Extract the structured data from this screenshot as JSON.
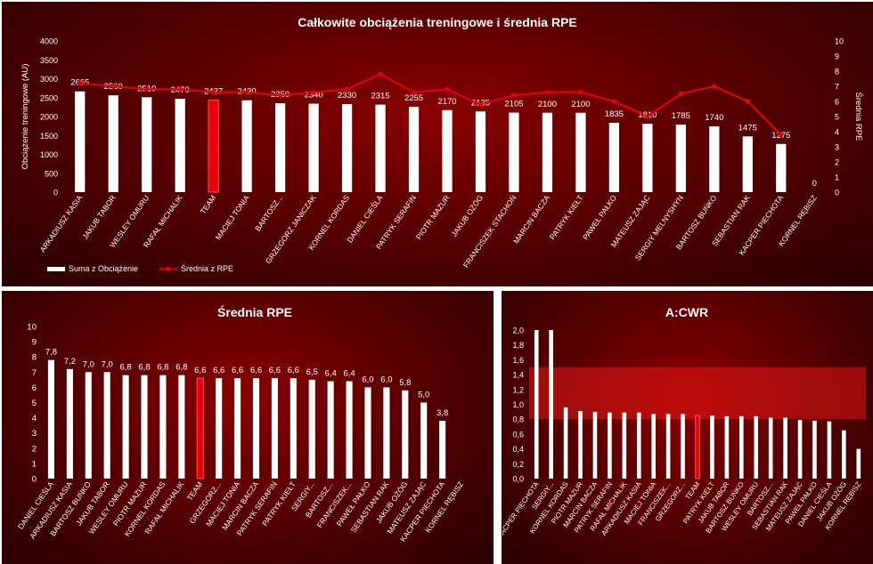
{
  "chart_data": [
    {
      "type": "bar",
      "title": "Całkowite obciążenia treningowe i średnia RPE",
      "ylabel": "Obciążenie treningowe (AU)",
      "y2label": "Średnia RPE",
      "ylim": [
        0,
        4000
      ],
      "yticks": [
        "0",
        "500",
        "1000",
        "1500",
        "2000",
        "2500",
        "3000",
        "3500",
        "4000"
      ],
      "y2lim": [
        0,
        10
      ],
      "y2ticks": [
        "0",
        "1",
        "2",
        "3",
        "4",
        "5",
        "6",
        "7",
        "8",
        "9",
        "10"
      ],
      "categories": [
        "ARKADIUSZ KASIA",
        "JAKUB TABOR",
        "WESLEY OMURU",
        "RAFAŁ MICHALIK",
        "TEAM",
        "MACIEJ TONIA",
        "BARTOSZ...",
        "GRZEGORZ JANICZAK",
        "KORNEL KORDAS",
        "DANIEL CIEŚLA",
        "PATRYK SERAFIN",
        "PIOTR MAZUR",
        "JAKUB OŻÓG",
        "FRANCISZEK STACHOŃ",
        "MARCIN BACZA",
        "PATRYK KIEŁT",
        "PAWEŁ PAŁKO",
        "MATEUSZ ZAJĄC",
        "SERGIY MELNYSHYN",
        "BARTOSZ BUŃKO",
        "SEBASTIAN RAK",
        "KACPER PIECHOTA",
        "KORNEL RĘBISZ"
      ],
      "series": [
        {
          "name": "Suma z Obciążenie",
          "type": "bar",
          "values": [
            2665,
            2560,
            2510,
            2470,
            2437,
            2430,
            2350,
            2340,
            2330,
            2315,
            2255,
            2170,
            2135,
            2105,
            2100,
            2100,
            1835,
            1810,
            1785,
            1740,
            1475,
            1275,
            0
          ],
          "labels": [
            "2665",
            "2560",
            "2510",
            "2470",
            "2437",
            "2430",
            "2350",
            "2340",
            "2330",
            "2315",
            "2255",
            "2170",
            "2135",
            "2105",
            "2100",
            "2100",
            "1835",
            "1810",
            "1785",
            "1740",
            "1475",
            "1275",
            "0"
          ]
        },
        {
          "name": "Średnia z RPE",
          "type": "line",
          "axis": "right",
          "values": [
            7.2,
            7.0,
            6.8,
            6.8,
            6.6,
            6.6,
            6.4,
            6.6,
            6.8,
            7.8,
            6.6,
            6.8,
            5.8,
            6.4,
            6.6,
            6.6,
            6.0,
            5.0,
            6.5,
            7.0,
            6.0,
            3.8,
            null
          ]
        }
      ],
      "highlight": "TEAM",
      "legend": "bottom-left",
      "colors": {
        "bar": "#ffffff",
        "team": "#e8000b",
        "line": "#e8000b"
      }
    },
    {
      "type": "bar",
      "title": "Średnia RPE",
      "ylim": [
        0,
        10
      ],
      "yticks": [
        "0",
        "1",
        "2",
        "3",
        "4",
        "5",
        "6",
        "7",
        "8",
        "9",
        "10"
      ],
      "categories": [
        "DANIEL CIEŚLA",
        "ARKADIUSZ KASIA",
        "BARTOSZ BUŃKO",
        "JAKUB TABOR",
        "WESLEY OMURU",
        "PIOTR MAZUR",
        "KORNEL KORDAS",
        "RAFAŁ MICHALIK",
        "TEAM",
        "GRZEGORZ...",
        "MACIEJ TONIA",
        "MARCIN BACZA",
        "PATRYK SERAFIN",
        "PATRYK KIEŁT",
        "SERGIY...",
        "BARTOSZ...",
        "FRANCISZEK...",
        "PAWEŁ PAŁKO",
        "SEBASTIAN RAK",
        "JAKUB OŻÓG",
        "MATEUSZ ZAJĄC",
        "KACPER PIECHOTA",
        "KORNEL RĘBISZ"
      ],
      "values": [
        7.8,
        7.2,
        7.0,
        7.0,
        6.8,
        6.8,
        6.8,
        6.8,
        6.6,
        6.6,
        6.6,
        6.6,
        6.6,
        6.6,
        6.5,
        6.4,
        6.4,
        6.0,
        6.0,
        5.8,
        5.0,
        3.8,
        null
      ],
      "labels": [
        "7,8",
        "7,2",
        "7,0",
        "7,0",
        "6,8",
        "6,8",
        "6,8",
        "6,8",
        "6,6",
        "6,6",
        "6,6",
        "6,6",
        "6,6",
        "6,6",
        "6,5",
        "6,4",
        "6,4",
        "6,0",
        "6,0",
        "5,8",
        "5,0",
        "3,8",
        ""
      ],
      "highlight": "TEAM"
    },
    {
      "type": "bar",
      "title": "A:CWR",
      "ylim": [
        0,
        2.0
      ],
      "yticks": [
        "0,0",
        "0,2",
        "0,4",
        "0,6",
        "0,8",
        "1,0",
        "1,2",
        "1,4",
        "1,6",
        "1,8",
        "2,0"
      ],
      "band": [
        0.8,
        1.5
      ],
      "categories": [
        "KACPER PIECHOTA",
        "SERGIY...",
        "KORNEL KORDAS",
        "PIOTR MAZUR",
        "MARCIN BACZA",
        "PATRYK SERAFIN",
        "RAFAŁ MICHALIK",
        "ARKADIUSZ KASIA",
        "MACIEJ TONIA",
        "FRANCISZEK...",
        "GRZEGORZ...",
        "TEAM",
        "PATRYK KIEŁT",
        "JAKUB TABOR",
        "BARTOSZ BUŃKO",
        "WESLEY OMURU",
        "BARTOSZ...",
        "SEBASTIAN RAK",
        "MATEUSZ ZAJĄC",
        "PAWEŁ PAŁKO",
        "DANIEL CIEŚLA",
        "JAKUB OŻÓG",
        "KORNEL RĘBISZ"
      ],
      "values": [
        2.0,
        2.0,
        0.96,
        0.91,
        0.9,
        0.89,
        0.89,
        0.89,
        0.87,
        0.87,
        0.87,
        0.85,
        0.85,
        0.84,
        0.84,
        0.84,
        0.82,
        0.82,
        0.79,
        0.78,
        0.77,
        0.65,
        0.4
      ],
      "highlight": "TEAM"
    }
  ]
}
